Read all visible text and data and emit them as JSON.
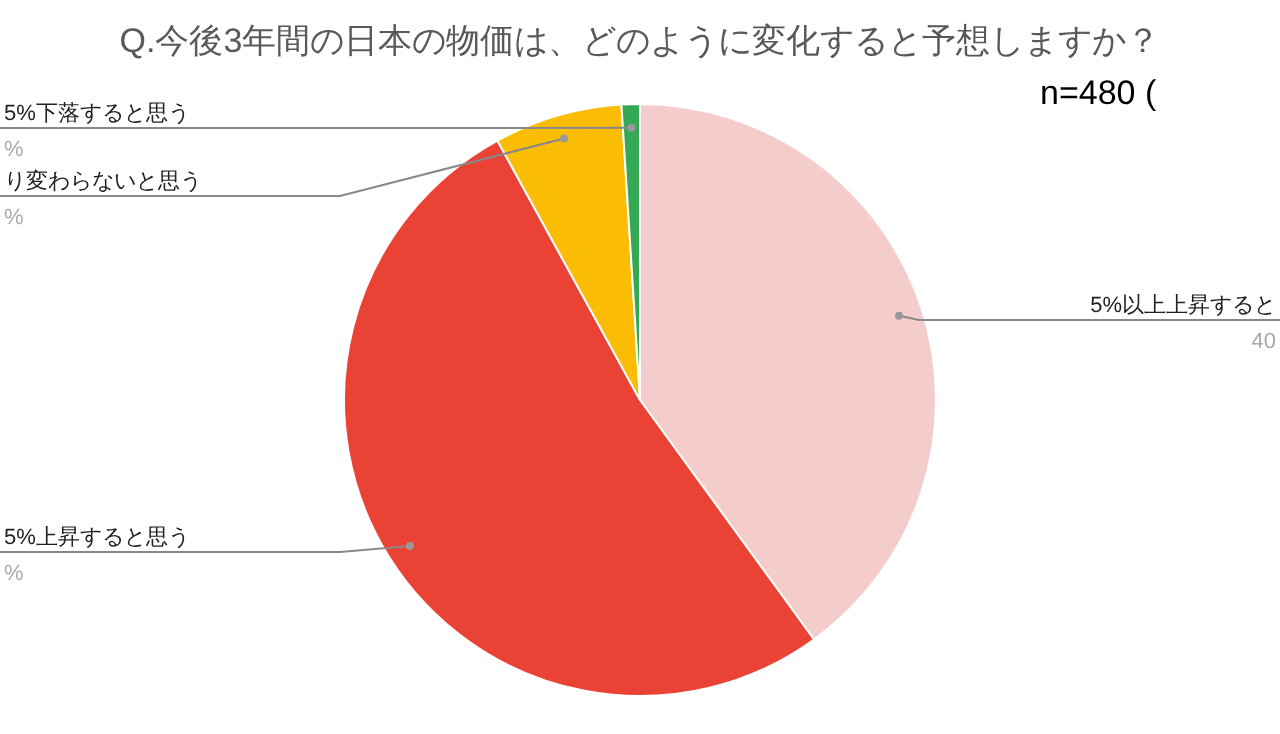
{
  "chart_data": {
    "type": "pie",
    "title": "Q.今後3年間の日本の物価は、どのように変化すると予想しますか？",
    "annotations": [
      "n=480 ("
    ],
    "categories": [
      "5%以上上昇すると",
      "5%上昇すると思う",
      "り変わらないと思う",
      "5%下落すると思う"
    ],
    "values": [
      40,
      52,
      7,
      1
    ],
    "colors": [
      "#f4cccc",
      "#ea4335",
      "#fbbc04",
      "#34a853"
    ],
    "value_labels": [
      "40",
      "%",
      "%",
      "%"
    ]
  }
}
